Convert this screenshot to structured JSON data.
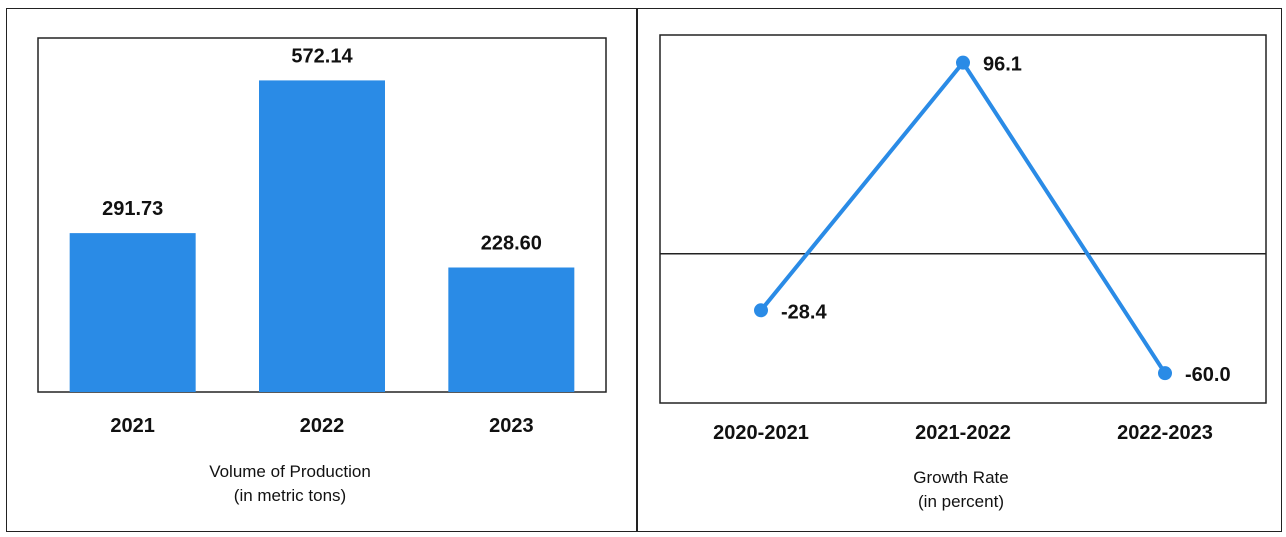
{
  "chart_data": [
    {
      "type": "bar",
      "categories": [
        "2021",
        "2022",
        "2023"
      ],
      "values": [
        291.73,
        572.14,
        228.6
      ],
      "value_labels": [
        "291.73",
        "572.14",
        "228.60"
      ],
      "title": "",
      "xlabel": "Volume of Production",
      "xlabel_unit": "(in metric tons)",
      "ylabel": "",
      "ylim": [
        0,
        650
      ],
      "color": "#2a8be6",
      "grid": false
    },
    {
      "type": "line",
      "categories": [
        "2020-2021",
        "2021-2022",
        "2022-2023"
      ],
      "values": [
        -28.4,
        96.1,
        -60.0
      ],
      "value_labels": [
        "-28.4",
        "96.1",
        "-60.0"
      ],
      "title": "",
      "xlabel": "Growth Rate",
      "xlabel_unit": "(in percent)",
      "ylabel": "",
      "ylim": [
        -75,
        110
      ],
      "color": "#2a8be6",
      "zero_line": true,
      "grid": false
    }
  ]
}
